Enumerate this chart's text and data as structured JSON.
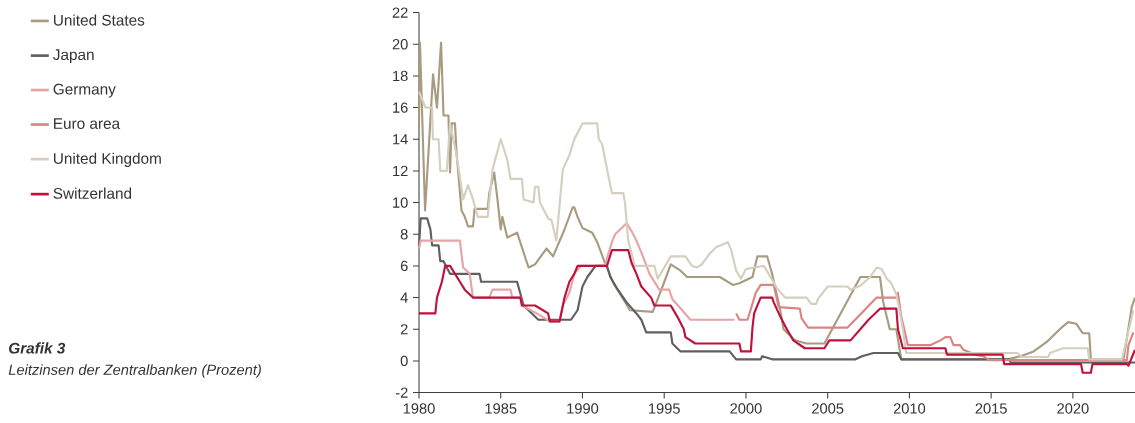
{
  "chart_data": {
    "type": "line",
    "title": "Grafik 3",
    "subtitle": "Leitzinsen der Zentralbanken (Prozent)",
    "xlim": [
      1980,
      2023.8
    ],
    "xticks": [
      1980,
      1985,
      1990,
      1995,
      2000,
      2005,
      2010,
      2015,
      2020
    ],
    "ylim": [
      -2,
      22
    ],
    "yticks": [
      -2,
      0,
      2,
      4,
      6,
      8,
      10,
      12,
      14,
      16,
      18,
      20,
      22
    ],
    "grid": false,
    "legend": "top left",
    "marker": "none",
    "line_style": "solid",
    "series": [
      {
        "name": "United States",
        "color": "#a89b80",
        "x": [
          1980.0,
          1980.06,
          1980.37,
          1980.86,
          1981.1,
          1981.35,
          1981.5,
          1981.8,
          1981.9,
          1982.0,
          1982.2,
          1982.3,
          1982.6,
          1982.8,
          1983.0,
          1983.3,
          1983.4,
          1984.2,
          1984.3,
          1984.6,
          1984.8,
          1985.0,
          1985.1,
          1985.4,
          1986.0,
          1986.7,
          1987.1,
          1987.8,
          1988.2,
          1988.9,
          1989.4,
          1989.5,
          1989.7,
          1990.0,
          1990.6,
          1990.9,
          1991.3,
          1991.9,
          1992.5,
          1992.9,
          1994.3,
          1994.9,
          1995.4,
          1996.0,
          1996.4,
          1998.4,
          1999.2,
          1999.6,
          2000.4,
          2000.7,
          2001.3,
          2001.6,
          2002.1,
          2002.3,
          2003.0,
          2003.7,
          2004.8,
          2007.0,
          2008.2,
          2008.4,
          2008.8,
          2009.2,
          2009.5,
          2016.0,
          2016.8,
          2017.6,
          2018.4,
          2019.2,
          2019.7,
          2020.2,
          2020.6,
          2021.0,
          2021.1,
          2023.1,
          2023.6,
          2023.8
        ],
        "values": [
          15.0,
          20.1,
          9.5,
          18.1,
          16.0,
          20.1,
          15.5,
          15.5,
          11.9,
          15.0,
          15.0,
          13.1,
          9.5,
          9.1,
          8.5,
          8.5,
          9.6,
          9.6,
          10.6,
          11.9,
          10.2,
          8.3,
          9.1,
          7.8,
          8.1,
          5.9,
          6.1,
          7.1,
          6.6,
          8.3,
          9.7,
          9.7,
          9.1,
          8.4,
          8.1,
          7.5,
          6.4,
          4.9,
          3.9,
          3.2,
          3.1,
          4.7,
          6.1,
          5.7,
          5.3,
          5.3,
          4.8,
          4.9,
          5.3,
          6.6,
          6.6,
          5.5,
          3.2,
          2.0,
          1.3,
          1.1,
          1.1,
          5.3,
          5.3,
          3.7,
          2.0,
          2.0,
          0.1,
          0.1,
          0.3,
          0.6,
          1.2,
          2.0,
          2.45,
          2.35,
          1.75,
          1.75,
          0.1,
          0.1,
          3.4,
          4.0
        ]
      },
      {
        "name": "Japan",
        "color": "#5f5f5f",
        "x": [
          1980.0,
          1980.1,
          1980.5,
          1980.7,
          1980.8,
          1981.2,
          1981.3,
          1981.5,
          1981.7,
          1981.9,
          1983.7,
          1983.8,
          1986.0,
          1986.4,
          1987.3,
          1989.3,
          1989.7,
          1990.0,
          1990.3,
          1990.8,
          1991.5,
          1991.7,
          1992.1,
          1992.7,
          1993.3,
          1993.6,
          1993.9,
          1995.4,
          1995.5,
          1996.0,
          1999.0,
          1999.4,
          2000.9,
          2001.0,
          2001.6,
          2006.7,
          2007.1,
          2007.8,
          2009.3,
          2009.5,
          2016.1,
          2016.2,
          2023.8
        ],
        "values": [
          7.2,
          9.0,
          9.0,
          8.3,
          7.3,
          7.3,
          6.3,
          6.3,
          5.9,
          5.5,
          5.5,
          5.0,
          5.0,
          3.5,
          2.6,
          2.6,
          3.2,
          4.7,
          5.3,
          6.0,
          6.0,
          5.3,
          4.6,
          3.7,
          3.0,
          2.6,
          1.8,
          1.8,
          1.1,
          0.6,
          0.6,
          0.1,
          0.1,
          0.3,
          0.1,
          0.1,
          0.3,
          0.5,
          0.5,
          0.1,
          0.1,
          -0.1,
          -0.1
        ]
      },
      {
        "name": "Germany",
        "color": "#e5a5a5",
        "x": [
          1980.0,
          1980.1,
          1982.5,
          1982.7,
          1983.1,
          1983.3,
          1984.3,
          1984.5,
          1985.6,
          1985.7,
          1986.2,
          1986.3,
          1987.2,
          1988.0,
          1988.6,
          1988.8,
          1989.2,
          1989.5,
          1989.9,
          1991.4,
          1991.5,
          1991.8,
          1992.0,
          1992.7,
          1993.0,
          1993.3,
          1993.7,
          1994.1,
          1994.7,
          1995.3,
          1995.5,
          1996.1,
          1996.6,
          1999.3
        ],
        "values": [
          7.1,
          7.6,
          7.6,
          5.9,
          5.5,
          4.0,
          4.0,
          4.5,
          4.5,
          4.0,
          4.0,
          3.5,
          3.0,
          2.5,
          2.5,
          3.5,
          4.3,
          5.5,
          6.0,
          6.0,
          6.5,
          7.5,
          8.0,
          8.7,
          8.2,
          7.6,
          6.6,
          5.5,
          4.5,
          4.5,
          3.9,
          3.2,
          2.6,
          2.6
        ]
      },
      {
        "name": "Euro area",
        "color": "#d98585",
        "x": [
          1999.4,
          1999.6,
          2000.1,
          2000.6,
          2000.9,
          2001.7,
          2002.0,
          2003.3,
          2003.4,
          2003.8,
          2006.2,
          2008.0,
          2009.2,
          2009.3,
          2009.5,
          2009.9,
          2011.3,
          2011.9,
          2012.2,
          2012.5,
          2012.7,
          2013.1,
          2013.3,
          2014.0,
          2014.5,
          2014.9,
          2023.3,
          2023.4,
          2023.7
        ],
        "values": [
          3.0,
          2.6,
          2.6,
          4.3,
          4.8,
          4.8,
          3.4,
          3.3,
          2.7,
          2.1,
          2.1,
          4.0,
          4.0,
          4.3,
          2.8,
          1.0,
          1.0,
          1.3,
          1.5,
          1.5,
          1.0,
          1.0,
          0.7,
          0.4,
          0.3,
          0.05,
          0.05,
          1.0,
          1.8
        ]
      },
      {
        "name": "United Kingdom",
        "color": "#d5cfbf",
        "x": [
          1980.0,
          1980.4,
          1980.8,
          1980.85,
          1981.2,
          1981.3,
          1981.7,
          1981.9,
          1982.2,
          1982.4,
          1982.7,
          1983.0,
          1983.3,
          1983.6,
          1984.2,
          1984.5,
          1985.0,
          1985.4,
          1985.6,
          1986.3,
          1986.4,
          1987.0,
          1987.1,
          1987.3,
          1987.4,
          1987.9,
          1988.1,
          1988.4,
          1988.8,
          1989.2,
          1989.5,
          1990.0,
          1990.9,
          1991.0,
          1991.2,
          1991.6,
          1991.8,
          1992.5,
          1992.6,
          1992.8,
          1993.2,
          1994.4,
          1994.6,
          1995.4,
          1996.3,
          1996.7,
          1997.0,
          1997.3,
          1997.8,
          1998.2,
          1998.9,
          1999.1,
          1999.4,
          1999.7,
          2000.0,
          2000.5,
          2001.1,
          2001.5,
          2001.9,
          2002.4,
          2003.7,
          2004.0,
          2004.3,
          2004.4,
          2005.0,
          2006.2,
          2006.4,
          2007.0,
          2007.6,
          2008.0,
          2008.3,
          2008.6,
          2008.9,
          2009.2,
          2009.4,
          2009.6,
          2009.8,
          2016.6,
          2016.9,
          2018.5,
          2018.6,
          2019.4,
          2020.9,
          2021.0,
          2023.0,
          2023.7
        ],
        "values": [
          17.0,
          16.0,
          16.0,
          14.0,
          14.0,
          12.0,
          12.0,
          15.0,
          13.5,
          12.3,
          10.2,
          11.1,
          10.2,
          9.1,
          9.1,
          12.1,
          14.0,
          12.7,
          11.5,
          11.5,
          10.2,
          10.0,
          11.0,
          11.0,
          10.0,
          9.0,
          8.9,
          7.6,
          12.1,
          13.0,
          14.0,
          15.0,
          15.0,
          14.0,
          13.7,
          11.6,
          10.6,
          10.6,
          10.0,
          7.6,
          6.0,
          6.0,
          5.2,
          6.6,
          6.6,
          6.0,
          5.9,
          6.1,
          6.8,
          7.2,
          7.5,
          7.0,
          5.7,
          5.2,
          5.8,
          5.9,
          6.0,
          5.3,
          4.6,
          4.0,
          4.0,
          3.6,
          3.6,
          3.9,
          4.7,
          4.7,
          4.5,
          4.75,
          5.3,
          5.9,
          5.8,
          5.2,
          4.9,
          4.2,
          3.2,
          2.0,
          0.5,
          0.5,
          0.25,
          0.25,
          0.5,
          0.8,
          0.8,
          0.1,
          0.1,
          3.2
        ]
      },
      {
        "name": "Switzerland",
        "color": "#c0103c",
        "x": [
          1980.0,
          1981.0,
          1981.1,
          1981.4,
          1981.6,
          1981.9,
          1982.5,
          1982.8,
          1983.3,
          1986.2,
          1986.3,
          1987.1,
          1987.9,
          1988.0,
          1988.6,
          1988.7,
          1988.9,
          1989.2,
          1989.5,
          1989.7,
          1991.5,
          1991.8,
          1992.8,
          1993.0,
          1993.3,
          1993.6,
          1994.2,
          1994.4,
          1995.4,
          1995.8,
          1996.2,
          1996.3,
          1996.9,
          1999.6,
          1999.7,
          2000.3,
          2000.4,
          2000.5,
          2000.9,
          2001.6,
          2001.7,
          2002.1,
          2002.5,
          2002.9,
          2003.6,
          2004.8,
          2005.1,
          2006.4,
          2007.5,
          2008.2,
          2009.2,
          2009.3,
          2009.6,
          2012.2,
          2012.3,
          2015.7,
          2015.8,
          2020.5,
          2020.6,
          2021.1,
          2021.2,
          2023.3,
          2023.4,
          2023.6,
          2023.8
        ],
        "values": [
          3.0,
          3.0,
          4.0,
          5.0,
          6.0,
          6.0,
          5.0,
          4.5,
          4.0,
          4.0,
          3.5,
          3.5,
          3.0,
          2.5,
          2.5,
          3.0,
          4.0,
          5.0,
          5.5,
          6.0,
          6.0,
          7.0,
          7.0,
          6.2,
          5.5,
          4.7,
          4.0,
          3.5,
          3.5,
          2.8,
          2.0,
          1.5,
          1.1,
          1.1,
          0.6,
          0.6,
          2.1,
          3.0,
          4.0,
          4.0,
          3.7,
          2.8,
          2.0,
          1.3,
          0.8,
          0.8,
          1.3,
          1.3,
          2.6,
          3.3,
          3.3,
          2.0,
          0.8,
          0.8,
          0.4,
          0.4,
          -0.2,
          -0.2,
          -0.75,
          -0.75,
          -0.2,
          -0.2,
          -0.3,
          0.2,
          0.7
        ]
      }
    ]
  }
}
